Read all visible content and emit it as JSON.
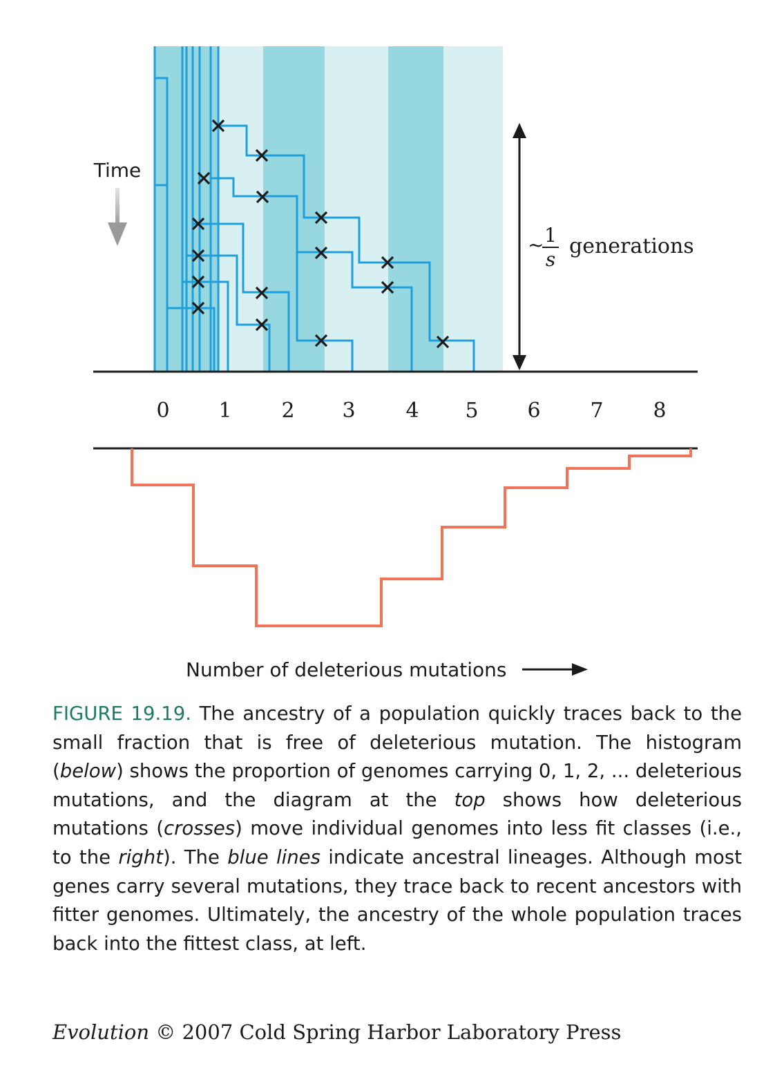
{
  "figure": {
    "time_label": "Time",
    "generations_label": {
      "tilde": "~",
      "numerator": "1",
      "denominator": "s",
      "text": "generations"
    },
    "class_labels": [
      "0",
      "1",
      "2",
      "3",
      "4",
      "5",
      "6",
      "7",
      "8"
    ],
    "x_axis_label": "Number of deleterious mutations",
    "colors": {
      "band_dark": "#97d8e0",
      "band_light": "#d9f0f3",
      "lineage": "#1e9fdc",
      "histogram": "#f0735a",
      "axis": "#1a1a1a"
    }
  },
  "caption": {
    "label": "FIGURE 19.19.",
    "s1": " The ancestry of a population quickly traces back to the small fraction that is free of deleterious mutation. The his­togram (",
    "i1": "below",
    "s2": ") shows the proportion of genomes carrying 0, 1, 2, ... deleterious mutations, and the diagram at the ",
    "i2": "top",
    "s3": " shows how deleterious mutations (",
    "i3": "crosses",
    "s4": ") move individual genomes into less fit classes (i.e., to the ",
    "i4": "right",
    "s5": "). The ",
    "i5": "blue lines",
    "s6": " indicate an­cestral lineages. Although most genes carry several mutations, they trace back to recent ancestors with fitter genomes. Ulti­mately, the ancestry of the whole population traces back into the fittest class, at left."
  },
  "credit": {
    "book": "Evolution",
    "rest": " © 2007 Cold Spring Harbor Laboratory Press"
  }
}
